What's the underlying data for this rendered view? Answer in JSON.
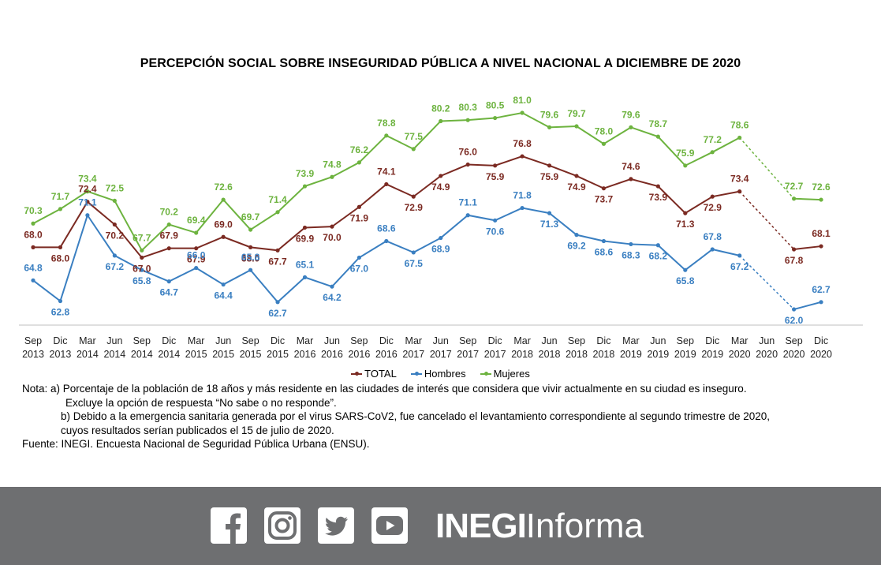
{
  "chart_data": {
    "type": "line",
    "title": "PERCEPCIÓN SOCIAL SOBRE INSEGURIDAD PÚBLICA A NIVEL NACIONAL A DICIEMBRE DE 2020",
    "categories": [
      [
        "Sep",
        "2013"
      ],
      [
        "Dic",
        "2013"
      ],
      [
        "Mar",
        "2014"
      ],
      [
        "Jun",
        "2014"
      ],
      [
        "Sep",
        "2014"
      ],
      [
        "Dic",
        "2014"
      ],
      [
        "Mar",
        "2015"
      ],
      [
        "Jun",
        "2015"
      ],
      [
        "Sep",
        "2015"
      ],
      [
        "Dic",
        "2015"
      ],
      [
        "Mar",
        "2016"
      ],
      [
        "Jun",
        "2016"
      ],
      [
        "Sep",
        "2016"
      ],
      [
        "Dic",
        "2016"
      ],
      [
        "Mar",
        "2017"
      ],
      [
        "Jun",
        "2017"
      ],
      [
        "Sep",
        "2017"
      ],
      [
        "Dic",
        "2017"
      ],
      [
        "Mar",
        "2018"
      ],
      [
        "Jun",
        "2018"
      ],
      [
        "Sep",
        "2018"
      ],
      [
        "Dic",
        "2018"
      ],
      [
        "Mar",
        "2019"
      ],
      [
        "Jun",
        "2019"
      ],
      [
        "Sep",
        "2019"
      ],
      [
        "Dic",
        "2019"
      ],
      [
        "Mar",
        "2020"
      ],
      [
        "Jun",
        "2020"
      ],
      [
        "Sep",
        "2020"
      ],
      [
        "Dic",
        "2020"
      ]
    ],
    "series": [
      {
        "name": "TOTAL",
        "color": "#7b2a22",
        "values": [
          68.0,
          68.0,
          72.4,
          70.2,
          67.0,
          67.9,
          67.9,
          69.0,
          68.0,
          67.7,
          69.9,
          70.0,
          71.9,
          74.1,
          72.9,
          74.9,
          76.0,
          75.9,
          76.8,
          75.9,
          74.9,
          73.7,
          74.6,
          73.9,
          71.3,
          72.9,
          73.4,
          null,
          67.8,
          68.1
        ]
      },
      {
        "name": "Hombres",
        "color": "#3a7fc1",
        "values": [
          64.8,
          62.8,
          71.1,
          67.2,
          65.8,
          64.7,
          66.0,
          64.4,
          65.8,
          62.7,
          65.1,
          64.2,
          67.0,
          68.6,
          67.5,
          68.9,
          71.1,
          70.6,
          71.8,
          71.3,
          69.2,
          68.6,
          68.3,
          68.2,
          65.8,
          67.8,
          67.2,
          null,
          62.0,
          62.7
        ]
      },
      {
        "name": "Mujeres",
        "color": "#6db33f",
        "values": [
          70.3,
          71.7,
          73.4,
          72.5,
          67.7,
          70.2,
          69.4,
          72.6,
          69.7,
          71.4,
          73.9,
          74.8,
          76.2,
          78.8,
          77.5,
          80.2,
          80.3,
          80.5,
          81.0,
          79.6,
          79.7,
          78.0,
          79.6,
          78.7,
          75.9,
          77.2,
          78.6,
          null,
          72.7,
          72.6
        ]
      }
    ],
    "gap_dashed": true,
    "legend_position": "bottom",
    "grid": false
  },
  "notes": {
    "line1": "Nota: a) Porcentaje de la población de 18 años y más residente en las ciudades de interés que considera que vivir actualmente en su ciudad es inseguro.",
    "line2": "Excluye la opción de respuesta “No sabe o no responde”.",
    "line3": "b)  Debido a la emergencia sanitaria generada por el virus SARS-CoV2, fue cancelado el levantamiento correspondiente al segundo trimestre de 2020,",
    "line4": "cuyos resultados serían publicados el 15 de julio de 2020.",
    "source": "Fuente: INEGI. Encuesta Nacional de Seguridad Pública Urbana (ENSU)."
  },
  "footer": {
    "brand_bold": "INEGI",
    "brand_light": "Informa",
    "icons": [
      "facebook-icon",
      "instagram-icon",
      "twitter-icon",
      "youtube-icon"
    ],
    "background": "#6e6f71"
  }
}
